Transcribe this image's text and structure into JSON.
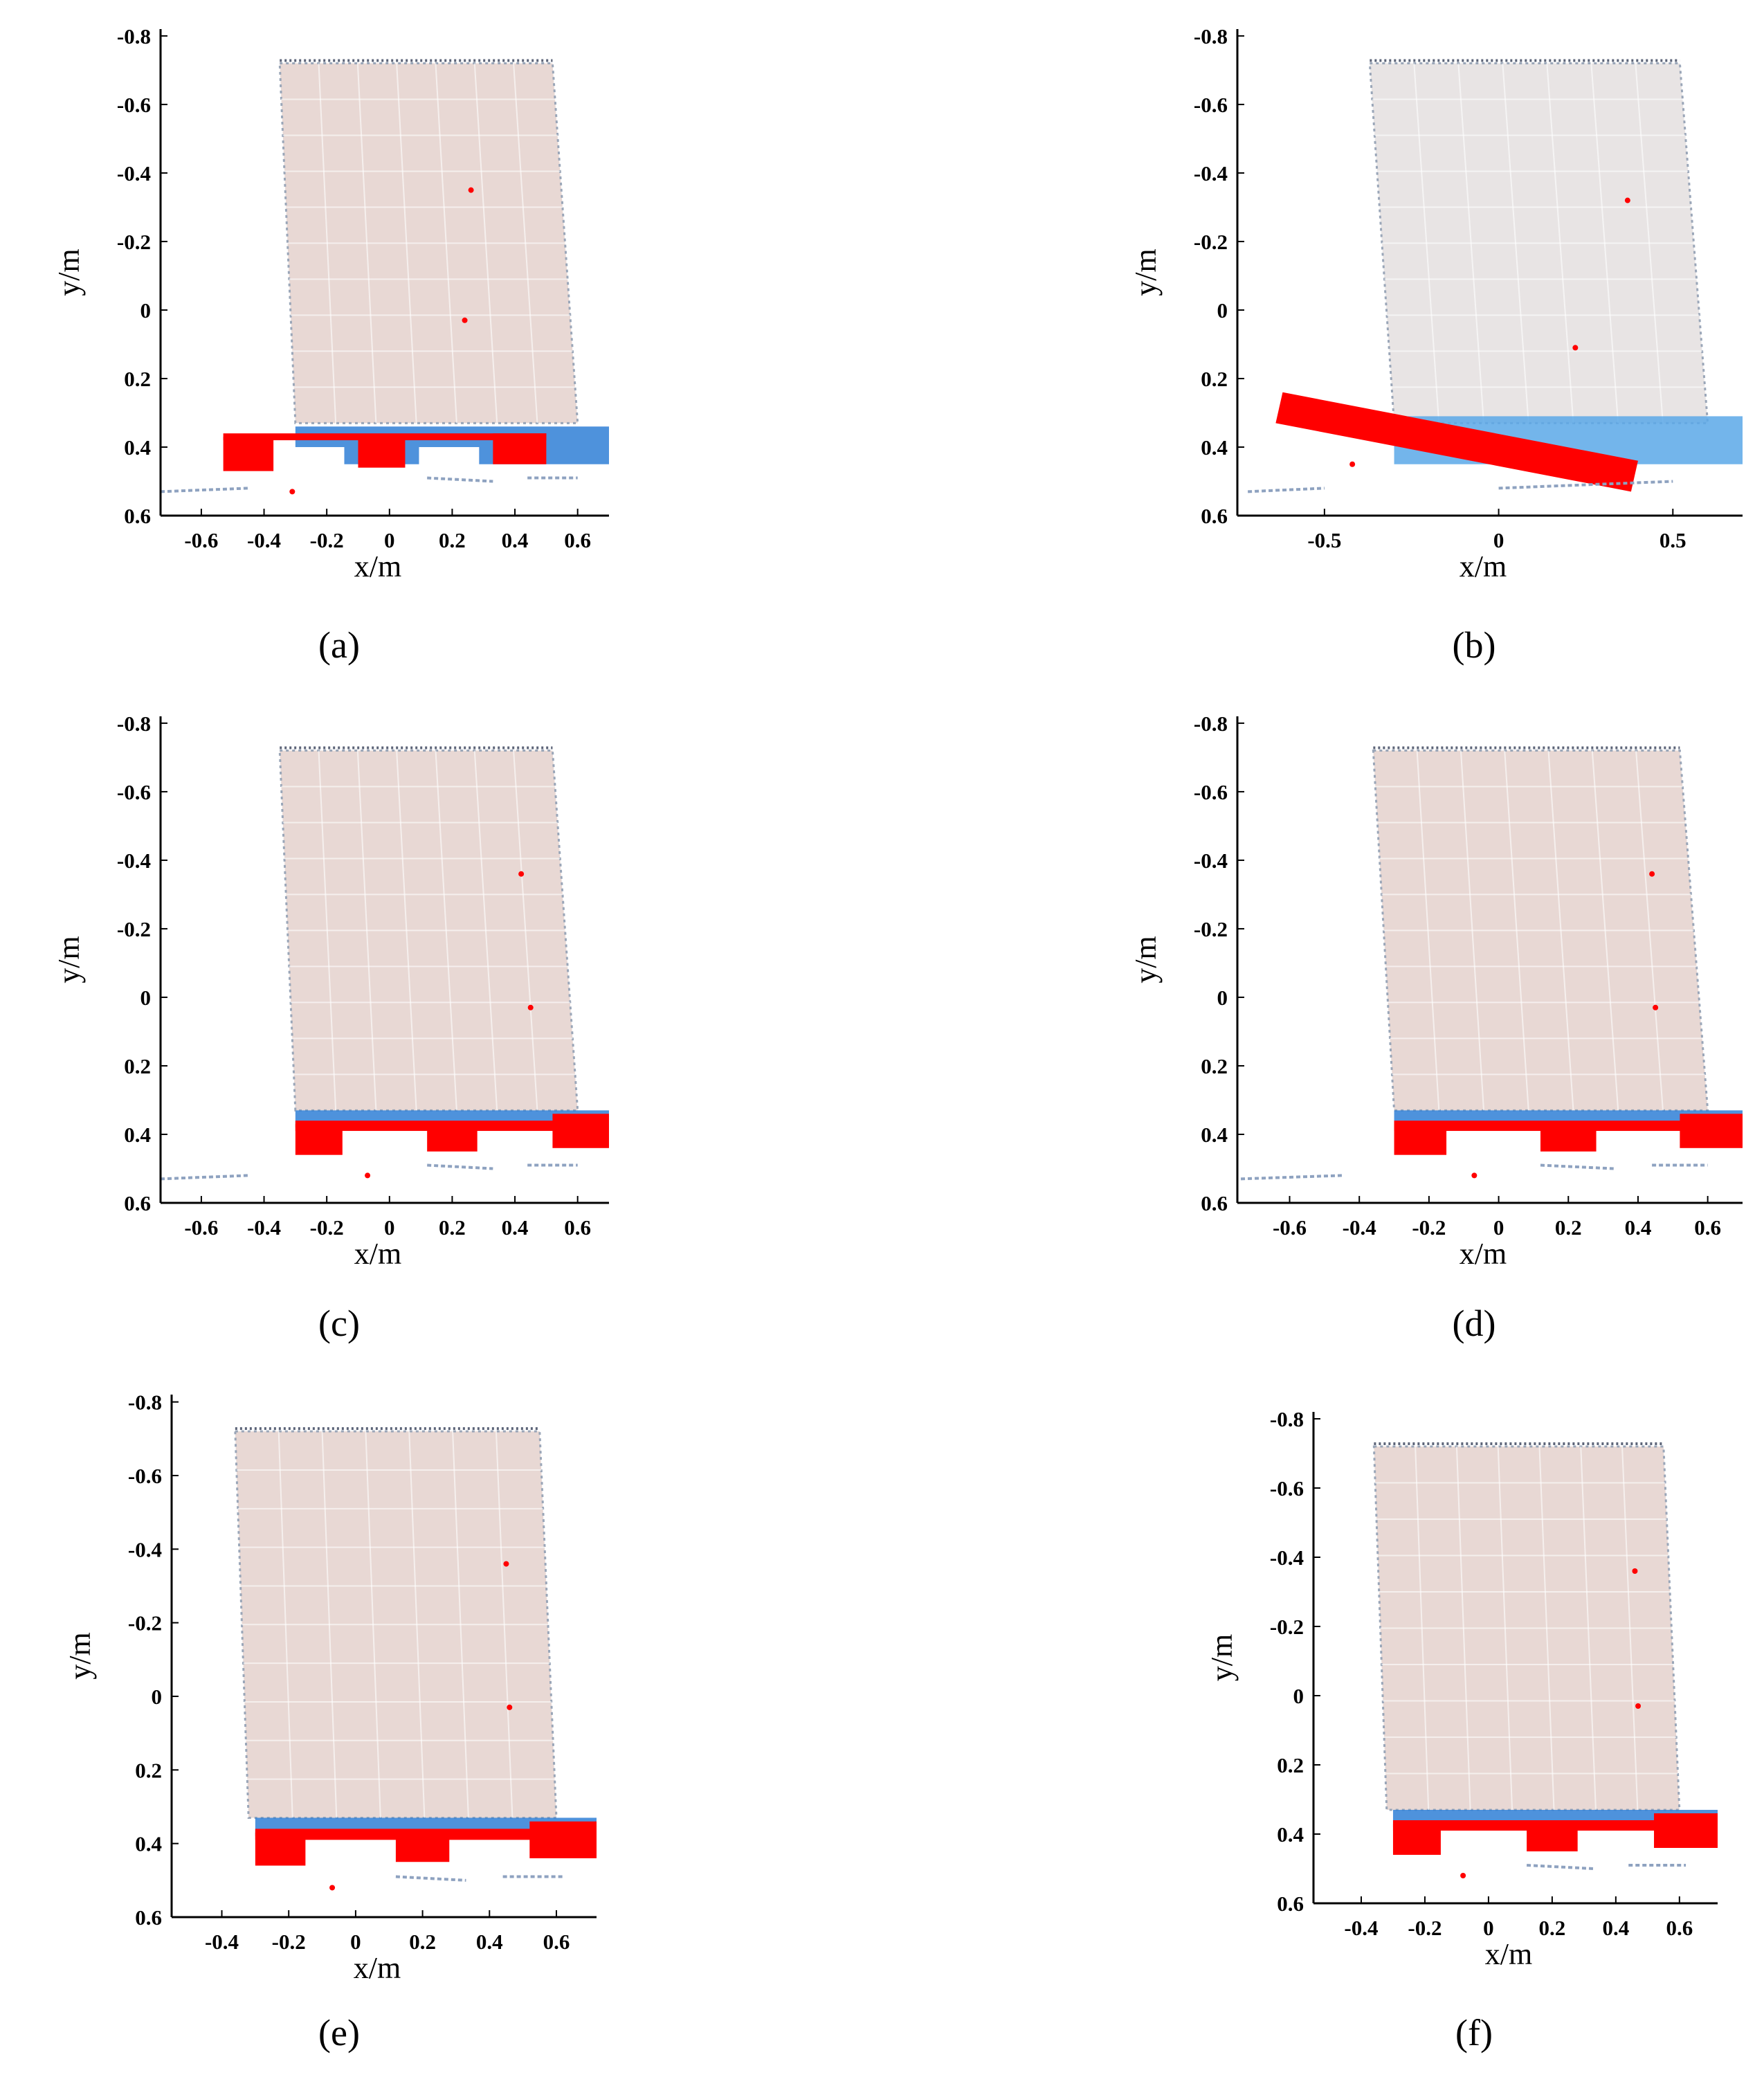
{
  "chart_data": [
    {
      "panel": "a",
      "type": "scatter",
      "caption": "(a)",
      "xlabel": "x/m",
      "ylabel": "y/m",
      "xlim": [
        -0.73,
        0.7
      ],
      "ylim": [
        -0.82,
        0.6
      ],
      "y_inverted": true,
      "xticks": [
        "-0.6",
        "-0.4",
        "-0.2",
        "0",
        "0.2",
        "0.4",
        "0.6"
      ],
      "xtick_values": [
        -0.6,
        -0.4,
        -0.2,
        0,
        0.2,
        0.4,
        0.6
      ],
      "yticks": [
        "-0.8",
        "-0.6",
        "-0.4",
        "-0.2",
        "0",
        "0.2",
        "0.4",
        "0.6"
      ],
      "ytick_values": [
        -0.8,
        -0.6,
        -0.4,
        -0.2,
        0,
        0.2,
        0.4,
        0.6
      ],
      "colors": {
        "cargo": "#e8d8d4",
        "pallet_blue": "#2f7fd6",
        "pallet_red": "#ff0000",
        "noise": "#8ea2c0"
      },
      "cargo_polygon": [
        [
          -0.35,
          -0.72
        ],
        [
          0.52,
          -0.72
        ],
        [
          0.6,
          0.33
        ],
        [
          -0.3,
          0.33
        ]
      ],
      "pallet_blue": [
        [
          -0.3,
          0.34,
          0.7,
          0.45
        ]
      ],
      "pallet_red": [
        [
          -0.53,
          0.37,
          -0.37,
          0.47
        ],
        [
          -0.1,
          0.37,
          0.05,
          0.46
        ],
        [
          0.33,
          0.36,
          0.5,
          0.45
        ],
        [
          -0.53,
          0.36,
          0.5,
          0.38
        ]
      ],
      "noise_lines": [
        [
          -0.73,
          0.53,
          -0.45,
          0.52
        ],
        [
          0.12,
          0.49,
          0.33,
          0.5
        ],
        [
          0.44,
          0.49,
          0.6,
          0.49
        ]
      ],
      "red_points": [
        [
          0.26,
          -0.35
        ],
        [
          0.24,
          0.03
        ],
        [
          -0.31,
          0.53
        ]
      ]
    },
    {
      "panel": "b",
      "type": "scatter",
      "caption": "(b)",
      "xlabel": "x/m",
      "ylabel": "y/m",
      "xlim": [
        -0.75,
        0.7
      ],
      "ylim": [
        -0.82,
        0.6
      ],
      "y_inverted": true,
      "xticks": [
        "-0.5",
        "0",
        "0.5"
      ],
      "xtick_values": [
        -0.5,
        0,
        0.5
      ],
      "yticks": [
        "-0.8",
        "-0.6",
        "-0.4",
        "-0.2",
        "0",
        "0.2",
        "0.4",
        "0.6"
      ],
      "ytick_values": [
        -0.8,
        -0.6,
        -0.4,
        -0.2,
        0,
        0.2,
        0.4,
        0.6
      ],
      "colors": {
        "cargo": "#e8e4e4",
        "pallet_blue": "#5aa8e8",
        "pallet_red": "#ff0000",
        "noise": "#8ea2c0"
      },
      "cargo_polygon": [
        [
          -0.37,
          -0.72
        ],
        [
          0.52,
          -0.72
        ],
        [
          0.6,
          0.33
        ],
        [
          -0.3,
          0.33
        ]
      ],
      "pallet_blue": [
        [
          -0.3,
          0.31,
          0.7,
          0.45
        ]
      ],
      "pallet_red_polygon": [
        [
          -0.62,
          0.24
        ],
        [
          0.4,
          0.44
        ],
        [
          0.38,
          0.53
        ],
        [
          -0.64,
          0.33
        ]
      ],
      "noise_lines": [
        [
          -0.72,
          0.53,
          -0.5,
          0.52
        ],
        [
          0.0,
          0.52,
          0.5,
          0.5
        ]
      ],
      "red_points": [
        [
          0.37,
          -0.32
        ],
        [
          0.22,
          0.11
        ],
        [
          -0.42,
          0.45
        ]
      ]
    },
    {
      "panel": "c",
      "type": "scatter",
      "caption": "(c)",
      "xlabel": "x/m",
      "ylabel": "y/m",
      "xlim": [
        -0.73,
        0.7
      ],
      "ylim": [
        -0.82,
        0.6
      ],
      "y_inverted": true,
      "xticks": [
        "-0.6",
        "-0.4",
        "-0.2",
        "0",
        "0.2",
        "0.4",
        "0.6"
      ],
      "xtick_values": [
        -0.6,
        -0.4,
        -0.2,
        0,
        0.2,
        0.4,
        0.6
      ],
      "yticks": [
        "-0.8",
        "-0.6",
        "-0.4",
        "-0.2",
        "0",
        "0.2",
        "0.4",
        "0.6"
      ],
      "ytick_values": [
        -0.8,
        -0.6,
        -0.4,
        -0.2,
        0,
        0.2,
        0.4,
        0.6
      ],
      "colors": {
        "cargo": "#e8d8d4",
        "pallet_blue": "#2f7fd6",
        "pallet_red": "#ff0000",
        "noise": "#8ea2c0"
      },
      "cargo_polygon": [
        [
          -0.35,
          -0.72
        ],
        [
          0.52,
          -0.72
        ],
        [
          0.6,
          0.33
        ],
        [
          -0.3,
          0.33
        ]
      ],
      "pallet_blue": [
        [
          -0.3,
          0.33,
          0.7,
          0.38
        ]
      ],
      "pallet_red": [
        [
          -0.3,
          0.37,
          -0.15,
          0.46
        ],
        [
          0.12,
          0.37,
          0.28,
          0.45
        ],
        [
          0.52,
          0.34,
          0.7,
          0.44
        ],
        [
          -0.3,
          0.36,
          0.7,
          0.39
        ]
      ],
      "noise_lines": [
        [
          -0.73,
          0.53,
          -0.45,
          0.52
        ],
        [
          0.12,
          0.49,
          0.33,
          0.5
        ],
        [
          0.44,
          0.49,
          0.6,
          0.49
        ]
      ],
      "red_points": [
        [
          0.42,
          -0.36
        ],
        [
          0.45,
          0.03
        ],
        [
          -0.07,
          0.52
        ]
      ]
    },
    {
      "panel": "d",
      "type": "scatter",
      "caption": "(d)",
      "xlabel": "x/m",
      "ylabel": "y/m",
      "xlim": [
        -0.75,
        0.7
      ],
      "ylim": [
        -0.82,
        0.6
      ],
      "y_inverted": true,
      "xticks": [
        "-0.6",
        "-0.4",
        "-0.2",
        "0",
        "0.2",
        "0.4",
        "0.6"
      ],
      "xtick_values": [
        -0.6,
        -0.4,
        -0.2,
        0,
        0.2,
        0.4,
        0.6
      ],
      "yticks": [
        "-0.8",
        "-0.6",
        "-0.4",
        "-0.2",
        "0",
        "0.2",
        "0.4",
        "0.6"
      ],
      "ytick_values": [
        -0.8,
        -0.6,
        -0.4,
        -0.2,
        0,
        0.2,
        0.4,
        0.6
      ],
      "colors": {
        "cargo": "#e8d8d4",
        "pallet_blue": "#2f7fd6",
        "pallet_red": "#ff0000",
        "noise": "#8ea2c0"
      },
      "cargo_polygon": [
        [
          -0.36,
          -0.72
        ],
        [
          0.52,
          -0.72
        ],
        [
          0.6,
          0.33
        ],
        [
          -0.3,
          0.33
        ]
      ],
      "pallet_blue": [
        [
          -0.3,
          0.33,
          0.7,
          0.38
        ]
      ],
      "pallet_red": [
        [
          -0.3,
          0.37,
          -0.15,
          0.46
        ],
        [
          0.12,
          0.37,
          0.28,
          0.45
        ],
        [
          0.52,
          0.34,
          0.7,
          0.44
        ],
        [
          -0.3,
          0.36,
          0.7,
          0.39
        ]
      ],
      "noise_lines": [
        [
          -0.74,
          0.53,
          -0.45,
          0.52
        ],
        [
          0.12,
          0.49,
          0.33,
          0.5
        ],
        [
          0.44,
          0.49,
          0.6,
          0.49
        ]
      ],
      "red_points": [
        [
          0.44,
          -0.36
        ],
        [
          0.45,
          0.03
        ],
        [
          -0.07,
          0.52
        ]
      ]
    },
    {
      "panel": "e",
      "type": "scatter",
      "caption": "(e)",
      "xlabel": "x/m",
      "ylabel": "y/m",
      "xlim": [
        -0.55,
        0.72
      ],
      "ylim": [
        -0.82,
        0.6
      ],
      "y_inverted": true,
      "xticks": [
        "-0.4",
        "-0.2",
        "0",
        "0.2",
        "0.4",
        "0.6"
      ],
      "xtick_values": [
        -0.4,
        -0.2,
        0,
        0.2,
        0.4,
        0.6
      ],
      "yticks": [
        "-0.8",
        "-0.6",
        "-0.4",
        "-0.2",
        "0",
        "0.2",
        "0.4",
        "0.6"
      ],
      "ytick_values": [
        -0.8,
        -0.6,
        -0.4,
        -0.2,
        0,
        0.2,
        0.4,
        0.6
      ],
      "colors": {
        "cargo": "#e8d8d4",
        "pallet_blue": "#2f7fd6",
        "pallet_red": "#ff0000",
        "noise": "#8ea2c0"
      },
      "cargo_polygon": [
        [
          -0.36,
          -0.72
        ],
        [
          0.55,
          -0.72
        ],
        [
          0.6,
          0.33
        ],
        [
          -0.32,
          0.33
        ]
      ],
      "pallet_blue": [
        [
          -0.3,
          0.33,
          0.72,
          0.38
        ]
      ],
      "pallet_red": [
        [
          -0.3,
          0.37,
          -0.15,
          0.46
        ],
        [
          0.12,
          0.37,
          0.28,
          0.45
        ],
        [
          0.52,
          0.34,
          0.72,
          0.44
        ],
        [
          -0.3,
          0.36,
          0.72,
          0.39
        ]
      ],
      "noise_lines": [
        [
          0.12,
          0.49,
          0.33,
          0.5
        ],
        [
          0.44,
          0.49,
          0.62,
          0.49
        ]
      ],
      "red_points": [
        [
          0.45,
          -0.36
        ],
        [
          0.46,
          0.03
        ],
        [
          -0.07,
          0.52
        ]
      ]
    },
    {
      "panel": "f",
      "type": "scatter",
      "caption": "(f)",
      "xlabel": "x/m",
      "ylabel": "y/m",
      "xlim": [
        -0.55,
        0.72
      ],
      "ylim": [
        -0.82,
        0.6
      ],
      "y_inverted": true,
      "xticks": [
        "-0.4",
        "-0.2",
        "0",
        "0.2",
        "0.4",
        "0.6"
      ],
      "xtick_values": [
        -0.4,
        -0.2,
        0,
        0.2,
        0.4,
        0.6
      ],
      "yticks": [
        "-0.8",
        "-0.6",
        "-0.4",
        "-0.2",
        "0",
        "0.2",
        "0.4",
        "0.6"
      ],
      "ytick_values": [
        -0.8,
        -0.6,
        -0.4,
        -0.2,
        0,
        0.2,
        0.4,
        0.6
      ],
      "colors": {
        "cargo": "#e8d8d4",
        "pallet_blue": "#2f7fd6",
        "pallet_red": "#ff0000",
        "noise": "#8ea2c0"
      },
      "cargo_polygon": [
        [
          -0.36,
          -0.72
        ],
        [
          0.55,
          -0.72
        ],
        [
          0.6,
          0.33
        ],
        [
          -0.32,
          0.33
        ]
      ],
      "pallet_blue": [
        [
          -0.3,
          0.33,
          0.72,
          0.38
        ]
      ],
      "pallet_red": [
        [
          -0.3,
          0.37,
          -0.15,
          0.46
        ],
        [
          0.12,
          0.37,
          0.28,
          0.45
        ],
        [
          0.52,
          0.34,
          0.72,
          0.44
        ],
        [
          -0.3,
          0.36,
          0.72,
          0.39
        ]
      ],
      "noise_lines": [
        [
          0.12,
          0.49,
          0.33,
          0.5
        ],
        [
          0.44,
          0.49,
          0.62,
          0.49
        ]
      ],
      "red_points": [
        [
          0.46,
          -0.36
        ],
        [
          0.47,
          0.03
        ],
        [
          -0.08,
          0.52
        ]
      ]
    }
  ]
}
